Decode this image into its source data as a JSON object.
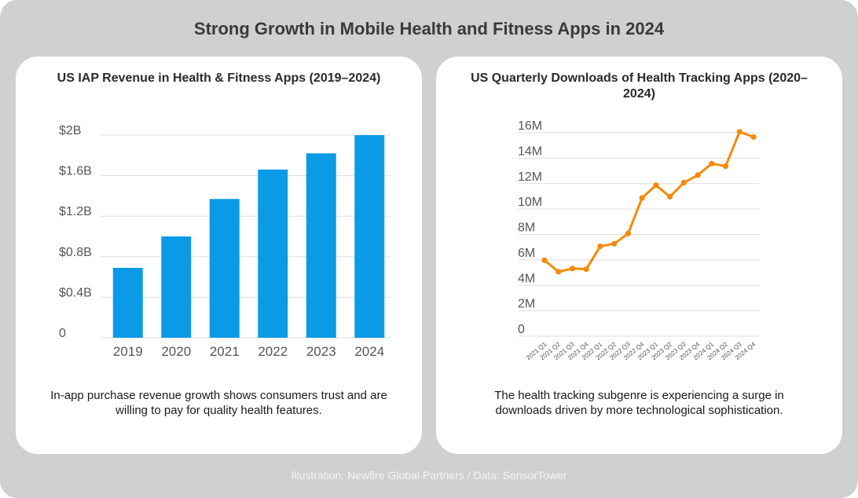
{
  "title": "Strong Growth in Mobile Health and Fitness Apps in 2024",
  "footer": "Illustration: Newfire Global Partners / Data: SensorTower",
  "colors": {
    "bar": "#0b9be6",
    "line": "#f58a0a",
    "background": "#d0d0d0",
    "card": "#ffffff"
  },
  "left": {
    "title": "US IAP Revenue in Health & Fitness Apps (2019–2024)",
    "caption": "In-app purchase revenue growth shows consumers trust and are willing to pay for quality health features."
  },
  "right": {
    "title": "US Quarterly Downloads of Health Tracking Apps (2020–2024)",
    "caption": "The health tracking subgenre is experiencing a surge in downloads driven by more technological sophistication."
  },
  "chart_data": [
    {
      "type": "bar",
      "title": "US IAP Revenue in Health & Fitness Apps (2019–2024)",
      "categories": [
        "2019",
        "2020",
        "2021",
        "2022",
        "2023",
        "2024"
      ],
      "values": [
        0.69,
        1.0,
        1.37,
        1.66,
        1.82,
        2.0
      ],
      "ylim": [
        0,
        2
      ],
      "yticks": [
        0,
        0.4,
        0.8,
        1.2,
        1.6,
        2.0
      ],
      "ytick_labels": [
        "0",
        "$0.4B",
        "$0.8B",
        "$1.2B",
        "$1.6B",
        "$2B"
      ],
      "grid": true
    },
    {
      "type": "line",
      "title": "US Quarterly Downloads of Health Tracking Apps (2020–2024)",
      "categories": [
        "2021 Q1",
        "2021 Q2",
        "2021 Q3",
        "2021 Q4",
        "2022 Q1",
        "2022 Q2",
        "2022 Q3",
        "2022 Q4",
        "2023 Q1",
        "2023 Q2",
        "2023 Q3",
        "2023 Q4",
        "2024 Q1",
        "2024 Q2",
        "2024 Q3",
        "2024 Q4"
      ],
      "values": [
        5.6,
        4.7,
        4.95,
        4.9,
        6.7,
        6.9,
        7.7,
        10.5,
        11.5,
        10.6,
        11.7,
        12.3,
        13.2,
        13.0,
        15.7,
        15.3
      ],
      "ylim": [
        0,
        16
      ],
      "yticks": [
        0,
        2,
        4,
        6,
        8,
        10,
        12,
        14,
        16
      ],
      "ytick_labels": [
        "0",
        "2M",
        "4M",
        "6M",
        "8M",
        "10M",
        "12M",
        "14M",
        "16M"
      ],
      "grid": true
    }
  ]
}
